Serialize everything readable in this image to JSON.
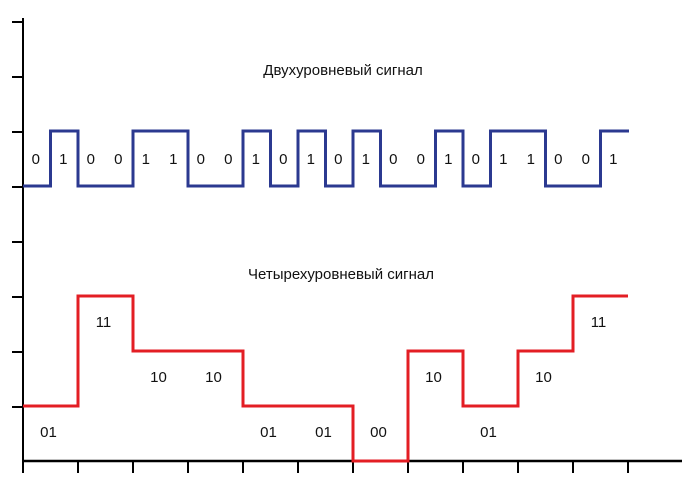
{
  "diagram": {
    "two_level": {
      "title": "Двухуровневый сигнал",
      "color": "#2b3990",
      "bits": [
        "0",
        "1",
        "0",
        "0",
        "1",
        "1",
        "0",
        "0",
        "1",
        "0",
        "1",
        "0",
        "1",
        "0",
        "0",
        "1",
        "0",
        "1",
        "1",
        "0",
        "0",
        "1"
      ]
    },
    "four_level": {
      "title": "Четырехуровневый сигнал",
      "color": "#e31e24",
      "symbols": [
        "01",
        "11",
        "10",
        "10",
        "01",
        "01",
        "00",
        "10",
        "01",
        "10",
        "11"
      ],
      "levels": {
        "00": 0,
        "01": 1,
        "10": 2,
        "11": 3
      }
    },
    "axis_color": "#000000"
  }
}
